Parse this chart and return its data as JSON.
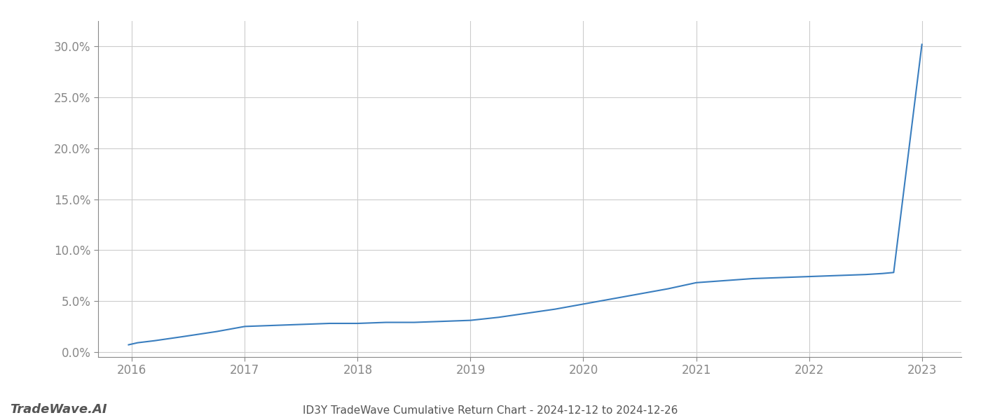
{
  "title": "ID3Y TradeWave Cumulative Return Chart - 2024-12-12 to 2024-12-26",
  "watermark": "TradeWave.AI",
  "line_color": "#3a7ebf",
  "background_color": "#ffffff",
  "grid_color": "#cccccc",
  "x_values": [
    2015.97,
    2016.05,
    2016.2,
    2016.45,
    2016.75,
    2017.0,
    2017.25,
    2017.5,
    2017.75,
    2018.0,
    2018.25,
    2018.5,
    2018.75,
    2019.0,
    2019.25,
    2019.5,
    2019.75,
    2020.0,
    2020.25,
    2020.5,
    2020.75,
    2021.0,
    2021.25,
    2021.5,
    2021.75,
    2022.0,
    2022.25,
    2022.5,
    2022.65,
    2022.75,
    2023.0
  ],
  "y_values": [
    0.007,
    0.009,
    0.011,
    0.015,
    0.02,
    0.025,
    0.026,
    0.027,
    0.028,
    0.028,
    0.029,
    0.029,
    0.03,
    0.031,
    0.034,
    0.038,
    0.042,
    0.047,
    0.052,
    0.057,
    0.062,
    0.068,
    0.07,
    0.072,
    0.073,
    0.074,
    0.075,
    0.076,
    0.077,
    0.078,
    0.302
  ],
  "xlim": [
    2015.7,
    2023.35
  ],
  "ylim": [
    -0.005,
    0.325
  ],
  "xticks": [
    2016,
    2017,
    2018,
    2019,
    2020,
    2021,
    2022,
    2023
  ],
  "yticks": [
    0.0,
    0.05,
    0.1,
    0.15,
    0.2,
    0.25,
    0.3
  ],
  "ytick_labels": [
    "0.0%",
    "5.0%",
    "10.0%",
    "15.0%",
    "20.0%",
    "25.0%",
    "30.0%"
  ],
  "line_width": 1.5,
  "title_fontsize": 11,
  "tick_fontsize": 12,
  "watermark_fontsize": 13
}
